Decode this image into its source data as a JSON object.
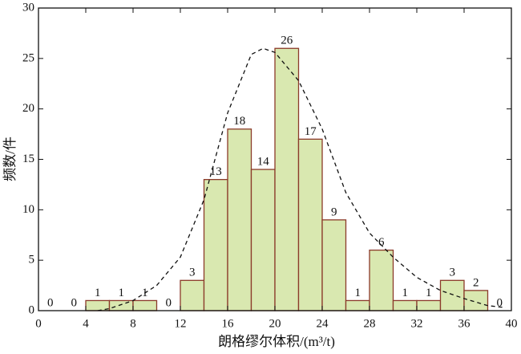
{
  "chart_data": {
    "type": "histogram",
    "xlabel": "朗格缪尔体积/(m³/t)",
    "ylabel": "频数/件",
    "bins": [
      0,
      2,
      4,
      6,
      8,
      10,
      12,
      14,
      16,
      18,
      20,
      22,
      24,
      26,
      28,
      30,
      32,
      34,
      36,
      38,
      40
    ],
    "values": [
      0,
      0,
      1,
      1,
      1,
      0,
      3,
      13,
      18,
      14,
      26,
      17,
      9,
      1,
      6,
      1,
      1,
      3,
      2,
      0
    ],
    "color": "#d9e8b0",
    "edge_color": "#8b3a2a",
    "xlim": [
      0,
      40
    ],
    "xticks": [
      0,
      4,
      8,
      12,
      16,
      20,
      24,
      28,
      32,
      36,
      40
    ],
    "ylim": [
      0,
      30
    ],
    "yticks": [
      0,
      5,
      10,
      15,
      20,
      25,
      30
    ],
    "fit_curve": {
      "x": [
        5,
        6,
        8,
        10,
        12,
        14,
        16,
        18,
        19,
        20,
        22,
        24,
        26,
        28,
        30,
        32,
        34,
        36,
        38,
        39.5
      ],
      "y": [
        0,
        0.2,
        1,
        2.5,
        5.3,
        11,
        19.6,
        25.4,
        26,
        25.6,
        22.8,
        18,
        11.7,
        7.7,
        5.3,
        3.3,
        2,
        1.2,
        0.5,
        0.3
      ]
    }
  }
}
